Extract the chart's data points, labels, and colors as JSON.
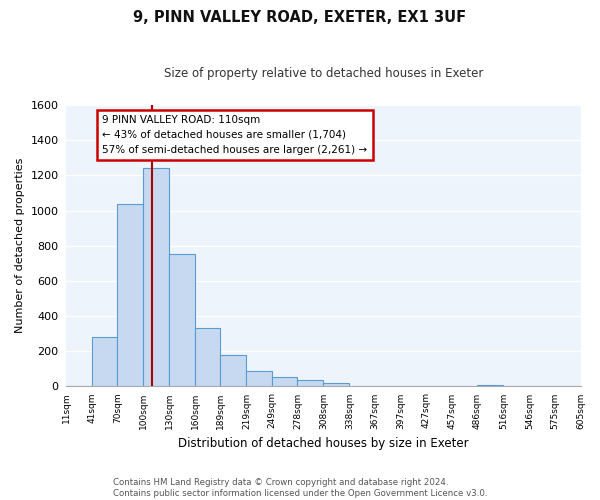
{
  "title": "9, PINN VALLEY ROAD, EXETER, EX1 3UF",
  "subtitle": "Size of property relative to detached houses in Exeter",
  "xlabel": "Distribution of detached houses by size in Exeter",
  "ylabel": "Number of detached properties",
  "bar_values": [
    0,
    280,
    1035,
    1240,
    750,
    330,
    175,
    85,
    50,
    35,
    15,
    0,
    0,
    0,
    0,
    0,
    5,
    0,
    0,
    0
  ],
  "bin_labels": [
    "11sqm",
    "41sqm",
    "70sqm",
    "100sqm",
    "130sqm",
    "160sqm",
    "189sqm",
    "219sqm",
    "249sqm",
    "278sqm",
    "308sqm",
    "338sqm",
    "367sqm",
    "397sqm",
    "427sqm",
    "457sqm",
    "486sqm",
    "516sqm",
    "546sqm",
    "575sqm",
    "605sqm"
  ],
  "bar_color": "#c6d9f0",
  "bar_edge_color": "#5b9bd5",
  "property_line_x": 110,
  "property_line_color": "#aa0000",
  "ylim": [
    0,
    1600
  ],
  "yticks": [
    0,
    200,
    400,
    600,
    800,
    1000,
    1200,
    1400,
    1600
  ],
  "annotation_line1": "9 PINN VALLEY ROAD: 110sqm",
  "annotation_line2": "← 43% of detached houses are smaller (1,704)",
  "annotation_line3": "57% of semi-detached houses are larger (2,261) →",
  "footer_line1": "Contains HM Land Registry data © Crown copyright and database right 2024.",
  "footer_line2": "Contains public sector information licensed under the Open Government Licence v3.0.",
  "background_color": "#ffffff",
  "plot_bg_color": "#eef4fb",
  "grid_color": "#ffffff",
  "bin_edges": [
    11,
    41,
    70,
    100,
    130,
    160,
    189,
    219,
    249,
    278,
    308,
    338,
    367,
    397,
    427,
    457,
    486,
    516,
    546,
    575,
    605
  ]
}
